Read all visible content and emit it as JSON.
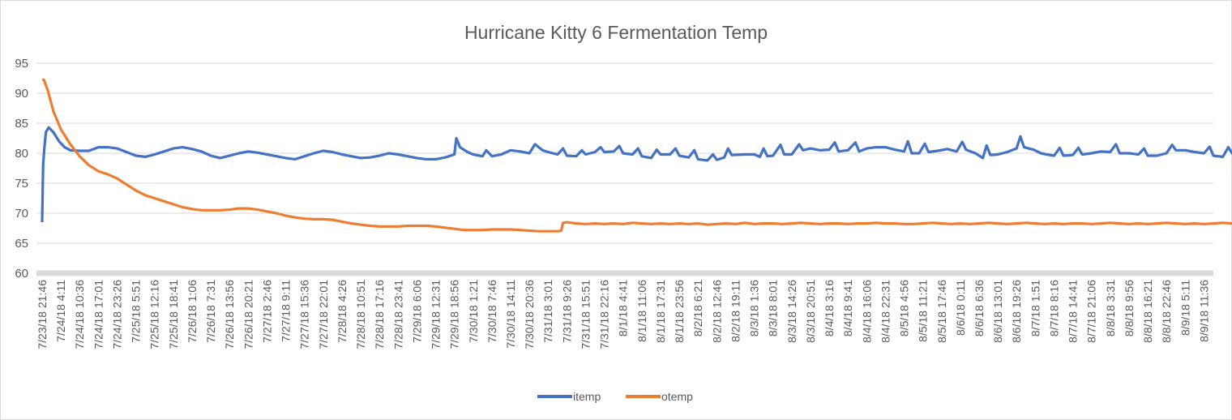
{
  "chart_data": {
    "type": "line",
    "title": "Hurricane Kitty 6 Fermentation Temp",
    "xlabel": "",
    "ylabel": "",
    "ylim": [
      60,
      95
    ],
    "yticks": [
      60,
      65,
      70,
      75,
      80,
      85,
      90,
      95
    ],
    "grid": true,
    "legend_position": "bottom",
    "x_tick_labels": [
      "7/23/18 21:46",
      "7/24/18 4:11",
      "7/24/18 10:36",
      "7/24/18 17:01",
      "7/24/18 23:26",
      "7/25/18 5:51",
      "7/25/18 12:16",
      "7/25/18 18:41",
      "7/26/18 1:06",
      "7/26/18 7:31",
      "7/26/18 13:56",
      "7/26/18 20:21",
      "7/27/18 2:46",
      "7/27/18 9:11",
      "7/27/18 15:36",
      "7/27/18 22:01",
      "7/28/18 4:26",
      "7/28/18 10:51",
      "7/28/18 17:16",
      "7/28/18 23:41",
      "7/29/18 6:06",
      "7/29/18 12:31",
      "7/29/18 18:56",
      "7/30/18 1:21",
      "7/30/18 7:46",
      "7/30/18 14:11",
      "7/30/18 20:36",
      "7/31/18 3:01",
      "7/31/18 9:26",
      "7/31/18 15:51",
      "7/31/18 22:16",
      "8/1/18 4:41",
      "8/1/18 11:06",
      "8/1/18 17:31",
      "8/1/18 23:56",
      "8/2/18 6:21",
      "8/2/18 12:46",
      "8/2/18 19:11",
      "8/3/18 1:36",
      "8/3/18 8:01",
      "8/3/18 14:26",
      "8/3/18 20:51",
      "8/4/18 3:16",
      "8/4/18 9:41",
      "8/4/18 16:06",
      "8/4/18 22:31",
      "8/5/18 4:56",
      "8/5/18 11:21",
      "8/5/18 17:46",
      "8/6/18 0:11",
      "8/6/18 6:36",
      "8/6/18 13:01",
      "8/6/18 19:26",
      "8/7/18 1:51",
      "8/7/18 8:16",
      "8/7/18 14:41",
      "8/7/18 21:06",
      "8/8/18 3:31",
      "8/8/18 9:56",
      "8/8/18 16:21",
      "8/8/18 22:46",
      "8/9/18 5:11",
      "8/9/18 11:36"
    ],
    "series": [
      {
        "name": "itemp",
        "color": "#4472c4",
        "points": [
          [
            0,
            68.5
          ],
          [
            0.05,
            78
          ],
          [
            0.12,
            81
          ],
          [
            0.2,
            83.5
          ],
          [
            0.35,
            84.3
          ],
          [
            0.6,
            83.5
          ],
          [
            0.9,
            82
          ],
          [
            1.2,
            81
          ],
          [
            1.5,
            80.5
          ],
          [
            2,
            80.4
          ],
          [
            2.5,
            80.4
          ],
          [
            3,
            81
          ],
          [
            3.5,
            81
          ],
          [
            4,
            80.8
          ],
          [
            4.5,
            80.2
          ],
          [
            5,
            79.6
          ],
          [
            5.5,
            79.4
          ],
          [
            6,
            79.8
          ],
          [
            6.5,
            80.3
          ],
          [
            7,
            80.8
          ],
          [
            7.5,
            81
          ],
          [
            8,
            80.7
          ],
          [
            8.5,
            80.3
          ],
          [
            9,
            79.6
          ],
          [
            9.5,
            79.2
          ],
          [
            10,
            79.6
          ],
          [
            10.5,
            80
          ],
          [
            11,
            80.3
          ],
          [
            11.5,
            80.1
          ],
          [
            12,
            79.8
          ],
          [
            12.5,
            79.5
          ],
          [
            13,
            79.2
          ],
          [
            13.5,
            79
          ],
          [
            14,
            79.5
          ],
          [
            14.5,
            80
          ],
          [
            15,
            80.4
          ],
          [
            15.5,
            80.2
          ],
          [
            16,
            79.8
          ],
          [
            16.5,
            79.5
          ],
          [
            17,
            79.2
          ],
          [
            17.5,
            79.3
          ],
          [
            18,
            79.6
          ],
          [
            18.5,
            80
          ],
          [
            19,
            79.8
          ],
          [
            19.5,
            79.5
          ],
          [
            20,
            79.2
          ],
          [
            20.5,
            79
          ],
          [
            21,
            79
          ],
          [
            21.5,
            79.3
          ],
          [
            22,
            79.8
          ],
          [
            22.1,
            82.5
          ],
          [
            22.3,
            81
          ],
          [
            22.7,
            80.2
          ],
          [
            23,
            79.8
          ],
          [
            23.5,
            79.5
          ],
          [
            23.7,
            80.5
          ],
          [
            24,
            79.5
          ],
          [
            24.5,
            79.8
          ],
          [
            25,
            80.5
          ],
          [
            25.5,
            80.3
          ],
          [
            26,
            80
          ],
          [
            26.3,
            81.5
          ],
          [
            26.7,
            80.5
          ],
          [
            27,
            80.2
          ],
          [
            27.5,
            79.8
          ],
          [
            27.8,
            80.8
          ],
          [
            28,
            79.6
          ],
          [
            28.5,
            79.5
          ],
          [
            28.8,
            80.5
          ],
          [
            29,
            79.8
          ],
          [
            29.5,
            80.2
          ],
          [
            29.8,
            81
          ],
          [
            30,
            80.2
          ],
          [
            30.5,
            80.3
          ],
          [
            30.8,
            81.2
          ],
          [
            31,
            80
          ],
          [
            31.5,
            79.8
          ],
          [
            31.8,
            80.8
          ],
          [
            32,
            79.5
          ],
          [
            32.5,
            79.2
          ],
          [
            32.8,
            80.6
          ],
          [
            33,
            79.8
          ],
          [
            33.5,
            79.8
          ],
          [
            33.8,
            80.8
          ],
          [
            34,
            79.6
          ],
          [
            34.5,
            79.3
          ],
          [
            34.8,
            80.5
          ],
          [
            35,
            79
          ],
          [
            35.5,
            78.8
          ],
          [
            35.8,
            79.8
          ],
          [
            36,
            78.9
          ],
          [
            36.4,
            79.3
          ],
          [
            36.6,
            80.8
          ],
          [
            36.8,
            79.7
          ],
          [
            37.5,
            79.8
          ],
          [
            38,
            79.8
          ],
          [
            38.3,
            79.4
          ],
          [
            38.5,
            80.8
          ],
          [
            38.7,
            79.5
          ],
          [
            39,
            79.6
          ],
          [
            39.4,
            81.4
          ],
          [
            39.6,
            79.8
          ],
          [
            40,
            79.8
          ],
          [
            40.4,
            81.5
          ],
          [
            40.6,
            80.5
          ],
          [
            41,
            80.8
          ],
          [
            41.5,
            80.5
          ],
          [
            42,
            80.6
          ],
          [
            42.3,
            81.8
          ],
          [
            42.5,
            80.3
          ],
          [
            43,
            80.5
          ],
          [
            43.4,
            81.8
          ],
          [
            43.6,
            80.3
          ],
          [
            44,
            80.8
          ],
          [
            44.5,
            81
          ],
          [
            45,
            81
          ],
          [
            45.5,
            80.6
          ],
          [
            46,
            80.3
          ],
          [
            46.2,
            82
          ],
          [
            46.4,
            80
          ],
          [
            46.8,
            80
          ],
          [
            47.1,
            81.6
          ],
          [
            47.3,
            80.2
          ],
          [
            47.8,
            80.4
          ],
          [
            48.3,
            80.7
          ],
          [
            48.8,
            80.3
          ],
          [
            49.1,
            81.9
          ],
          [
            49.3,
            80.6
          ],
          [
            49.8,
            80
          ],
          [
            50.2,
            79.2
          ],
          [
            50.4,
            81.3
          ],
          [
            50.6,
            79.7
          ],
          [
            51,
            79.8
          ],
          [
            51.5,
            80.2
          ],
          [
            52,
            80.8
          ],
          [
            52.2,
            82.8
          ],
          [
            52.4,
            81
          ],
          [
            52.9,
            80.6
          ],
          [
            53.3,
            80
          ],
          [
            53.6,
            79.8
          ],
          [
            54,
            79.6
          ],
          [
            54.3,
            80.9
          ],
          [
            54.5,
            79.6
          ],
          [
            55,
            79.7
          ],
          [
            55.3,
            80.9
          ],
          [
            55.5,
            79.8
          ],
          [
            56,
            80
          ],
          [
            56.5,
            80.3
          ],
          [
            57,
            80.2
          ],
          [
            57.3,
            81.5
          ],
          [
            57.5,
            80
          ],
          [
            58,
            80
          ],
          [
            58.5,
            79.8
          ],
          [
            58.8,
            80.8
          ],
          [
            59,
            79.6
          ],
          [
            59.5,
            79.6
          ],
          [
            60,
            80
          ],
          [
            60.3,
            81.4
          ],
          [
            60.5,
            80.5
          ],
          [
            61,
            80.5
          ],
          [
            61.5,
            80.2
          ],
          [
            62,
            80
          ],
          [
            62.3,
            81.1
          ],
          [
            62.5,
            79.6
          ],
          [
            63,
            79.4
          ],
          [
            63.3,
            81
          ],
          [
            63.5,
            80
          ],
          [
            64,
            80.5
          ],
          [
            64.5,
            80.7
          ],
          [
            64.5,
            80.8
          ]
        ]
      },
      {
        "name": "otemp",
        "color": "#ed7d31",
        "points": [
          [
            0,
            92.3
          ],
          [
            0.1,
            92.2
          ],
          [
            0.3,
            90.5
          ],
          [
            0.6,
            87
          ],
          [
            1,
            84
          ],
          [
            1.5,
            81.5
          ],
          [
            2,
            79.5
          ],
          [
            2.5,
            78
          ],
          [
            3,
            77
          ],
          [
            3.5,
            76.5
          ],
          [
            4,
            75.8
          ],
          [
            4.5,
            74.8
          ],
          [
            5,
            73.8
          ],
          [
            5.5,
            73
          ],
          [
            6,
            72.5
          ],
          [
            6.5,
            72
          ],
          [
            7,
            71.5
          ],
          [
            7.5,
            71
          ],
          [
            8,
            70.7
          ],
          [
            8.5,
            70.5
          ],
          [
            9,
            70.5
          ],
          [
            9.5,
            70.5
          ],
          [
            10,
            70.6
          ],
          [
            10.5,
            70.8
          ],
          [
            11,
            70.8
          ],
          [
            11.5,
            70.6
          ],
          [
            12,
            70.3
          ],
          [
            12.5,
            70
          ],
          [
            13,
            69.6
          ],
          [
            13.5,
            69.3
          ],
          [
            14,
            69.1
          ],
          [
            14.5,
            69
          ],
          [
            15,
            69
          ],
          [
            15.5,
            68.9
          ],
          [
            16,
            68.6
          ],
          [
            16.5,
            68.3
          ],
          [
            17,
            68.1
          ],
          [
            17.5,
            67.9
          ],
          [
            18,
            67.8
          ],
          [
            18.5,
            67.8
          ],
          [
            19,
            67.8
          ],
          [
            19.5,
            67.9
          ],
          [
            20,
            67.9
          ],
          [
            20.5,
            67.9
          ],
          [
            21,
            67.8
          ],
          [
            21.5,
            67.6
          ],
          [
            22,
            67.4
          ],
          [
            22.5,
            67.2
          ],
          [
            23,
            67.2
          ],
          [
            23.5,
            67.2
          ],
          [
            24,
            67.3
          ],
          [
            24.5,
            67.3
          ],
          [
            25,
            67.3
          ],
          [
            25.5,
            67.2
          ],
          [
            26,
            67.1
          ],
          [
            26.5,
            67
          ],
          [
            27,
            67
          ],
          [
            27.5,
            67
          ],
          [
            27.7,
            67.1
          ],
          [
            27.8,
            68.4
          ],
          [
            28,
            68.5
          ],
          [
            28.5,
            68.3
          ],
          [
            29,
            68.2
          ],
          [
            29.5,
            68.3
          ],
          [
            30,
            68.2
          ],
          [
            30.5,
            68.3
          ],
          [
            31,
            68.2
          ],
          [
            31.5,
            68.4
          ],
          [
            32,
            68.3
          ],
          [
            32.5,
            68.2
          ],
          [
            33,
            68.3
          ],
          [
            33.5,
            68.2
          ],
          [
            34,
            68.3
          ],
          [
            34.5,
            68.2
          ],
          [
            35,
            68.3
          ],
          [
            35.5,
            68.1
          ],
          [
            36,
            68.2
          ],
          [
            36.5,
            68.3
          ],
          [
            37,
            68.2
          ],
          [
            37.5,
            68.4
          ],
          [
            38,
            68.2
          ],
          [
            38.5,
            68.3
          ],
          [
            39,
            68.3
          ],
          [
            39.5,
            68.2
          ],
          [
            40,
            68.3
          ],
          [
            40.5,
            68.4
          ],
          [
            41,
            68.3
          ],
          [
            41.5,
            68.2
          ],
          [
            42,
            68.3
          ],
          [
            42.5,
            68.3
          ],
          [
            43,
            68.2
          ],
          [
            43.5,
            68.3
          ],
          [
            44,
            68.3
          ],
          [
            44.5,
            68.4
          ],
          [
            45,
            68.3
          ],
          [
            45.5,
            68.3
          ],
          [
            46,
            68.2
          ],
          [
            46.5,
            68.2
          ],
          [
            47,
            68.3
          ],
          [
            47.5,
            68.4
          ],
          [
            48,
            68.3
          ],
          [
            48.5,
            68.2
          ],
          [
            49,
            68.3
          ],
          [
            49.5,
            68.2
          ],
          [
            50,
            68.3
          ],
          [
            50.5,
            68.4
          ],
          [
            51,
            68.3
          ],
          [
            51.5,
            68.2
          ],
          [
            52,
            68.3
          ],
          [
            52.5,
            68.4
          ],
          [
            53,
            68.3
          ],
          [
            53.5,
            68.2
          ],
          [
            54,
            68.3
          ],
          [
            54.5,
            68.2
          ],
          [
            55,
            68.3
          ],
          [
            55.5,
            68.3
          ],
          [
            56,
            68.2
          ],
          [
            56.5,
            68.3
          ],
          [
            57,
            68.4
          ],
          [
            57.5,
            68.3
          ],
          [
            58,
            68.2
          ],
          [
            58.5,
            68.3
          ],
          [
            59,
            68.2
          ],
          [
            59.5,
            68.3
          ],
          [
            60,
            68.4
          ],
          [
            60.5,
            68.3
          ],
          [
            61,
            68.2
          ],
          [
            61.5,
            68.3
          ],
          [
            62,
            68.2
          ],
          [
            62.5,
            68.3
          ],
          [
            63,
            68.4
          ],
          [
            63.5,
            68.3
          ],
          [
            64,
            68.3
          ],
          [
            64.5,
            68.3
          ]
        ]
      }
    ]
  }
}
